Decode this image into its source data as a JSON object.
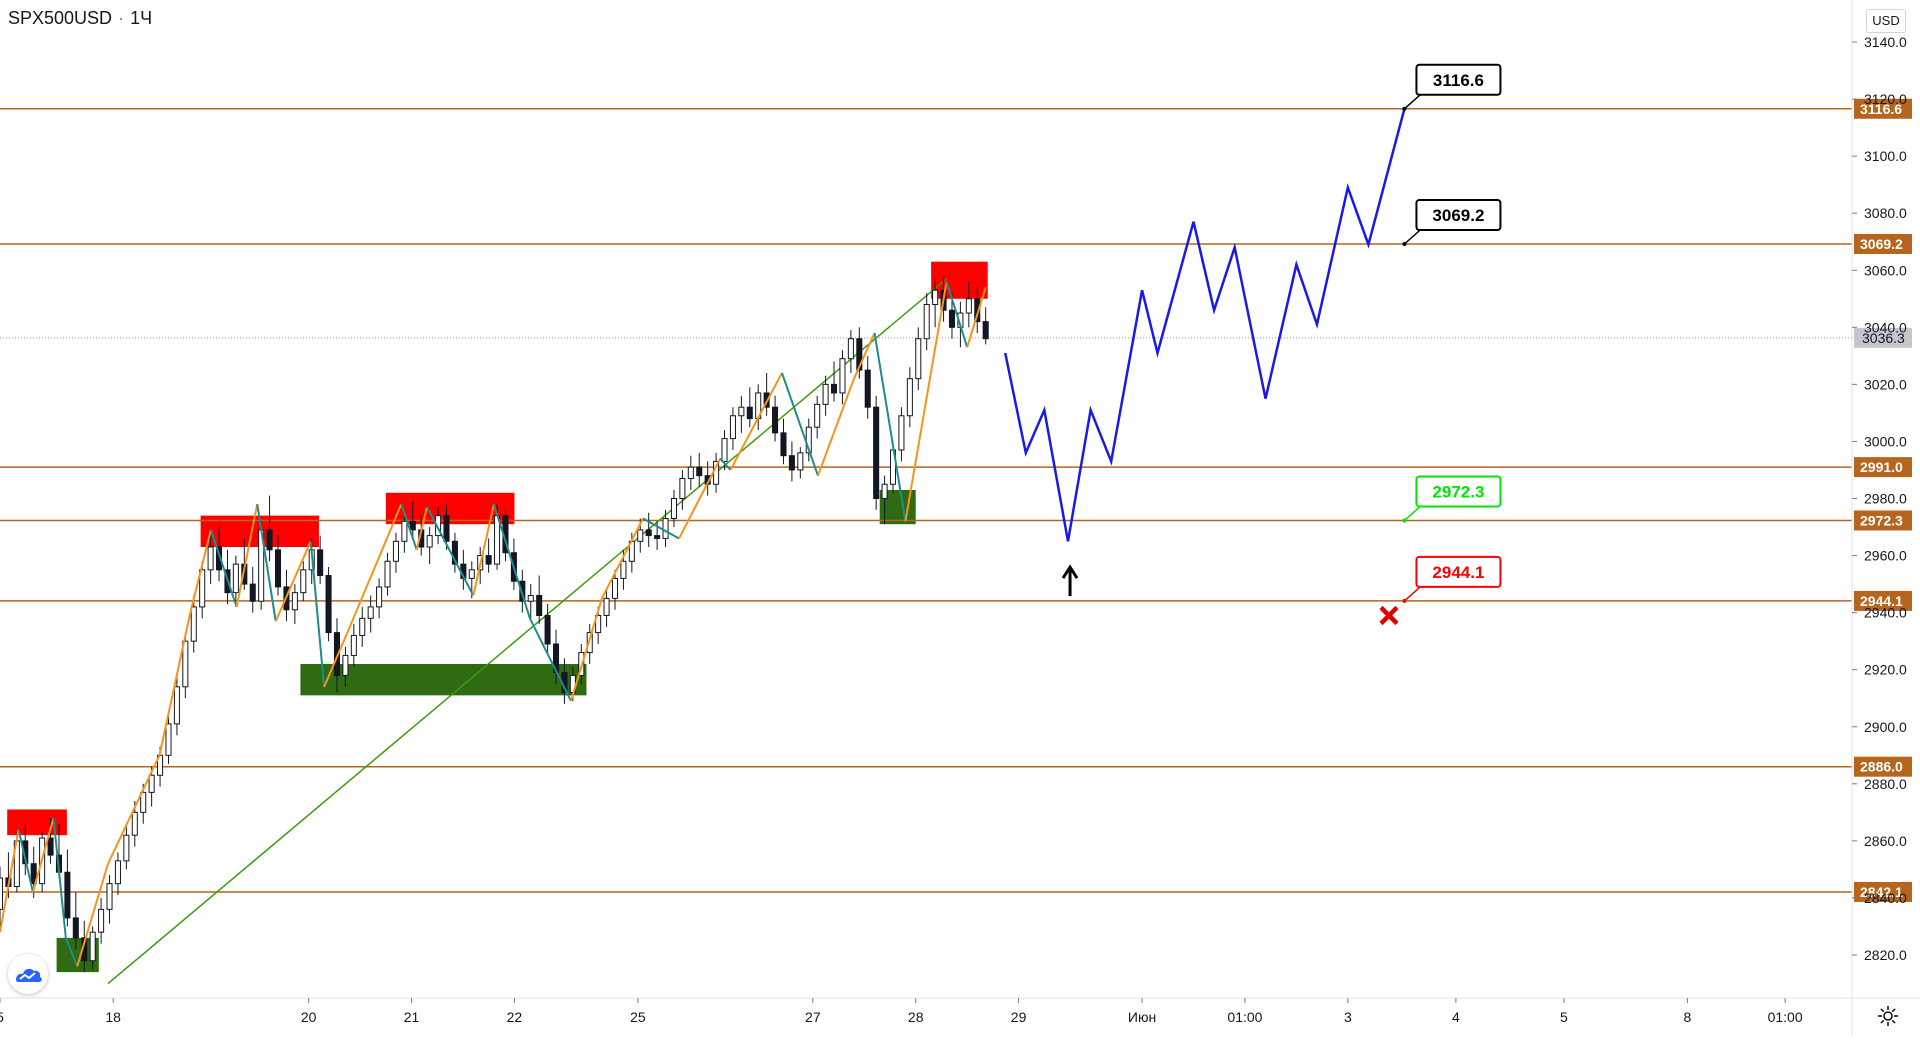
{
  "header": {
    "symbol": "SPX500USD",
    "interval": "1Ч"
  },
  "axis": {
    "currency": "USD"
  },
  "icons": {
    "logo": "tradingview-cloud-icon",
    "settings": "gear-icon"
  },
  "colors": {
    "level_line": "#b5651d",
    "level_tag_bg": "#b5651d",
    "resistance_zone": "#ff0000",
    "support_zone": "#2e6b12",
    "trendline": "#3f9b0b",
    "zigzag_up": "#f7931a",
    "zigzag_down": "#1f8c8c",
    "forecast_path": "#1a1ae6",
    "candle": "#131722",
    "label_green": "#00e600",
    "label_red": "#ff0000",
    "label_black": "#000000"
  },
  "chart_data": {
    "type": "candlestick",
    "instrument": "SPX500USD",
    "timeframe": "1Ч",
    "y_axis": {
      "min": 2810,
      "max": 3150,
      "ticks": [
        2820.0,
        2840.0,
        2860.0,
        2880.0,
        2900.0,
        2920.0,
        2940.0,
        2960.0,
        2980.0,
        3000.0,
        3020.0,
        3040.0,
        3060.0,
        3080.0,
        3100.0,
        3120.0,
        3140.0
      ]
    },
    "x_axis": {
      "ticks": [
        {
          "label": "5",
          "t": 0.0
        },
        {
          "label": "18",
          "t": 1.1
        },
        {
          "label": "20",
          "t": 3.0
        },
        {
          "label": "21",
          "t": 4.0
        },
        {
          "label": "22",
          "t": 5.0
        },
        {
          "label": "25",
          "t": 6.2
        },
        {
          "label": "27",
          "t": 7.9
        },
        {
          "label": "28",
          "t": 8.9
        },
        {
          "label": "29",
          "t": 9.9
        },
        {
          "label": "Июн",
          "t": 11.1
        },
        {
          "label": "01:00",
          "t": 12.1
        },
        {
          "label": "3",
          "t": 13.1
        },
        {
          "label": "4",
          "t": 14.15
        },
        {
          "label": "5",
          "t": 15.2
        },
        {
          "label": "8",
          "t": 16.4
        },
        {
          "label": "01:00",
          "t": 17.35
        }
      ]
    },
    "current_price": 3036.3,
    "levels": [
      3116.6,
      3069.2,
      2991.0,
      2972.3,
      2944.1,
      2886.0,
      2842.1
    ],
    "resistance_zones": [
      {
        "t0": 0.07,
        "t1": 0.65,
        "p0": 2862,
        "p1": 2871
      },
      {
        "t0": 1.95,
        "t1": 3.1,
        "p0": 2963,
        "p1": 2974
      },
      {
        "t0": 3.75,
        "t1": 5.0,
        "p0": 2971,
        "p1": 2982
      },
      {
        "t0": 9.05,
        "t1": 9.6,
        "p0": 3050,
        "p1": 3063
      }
    ],
    "support_zones": [
      {
        "t0": 0.55,
        "t1": 0.96,
        "p0": 2814,
        "p1": 2826
      },
      {
        "t0": 2.92,
        "t1": 5.7,
        "p0": 2911,
        "p1": 2922
      },
      {
        "t0": 8.55,
        "t1": 8.9,
        "p0": 2971,
        "p1": 2983
      }
    ],
    "trendline": [
      {
        "t": 1.05,
        "p": 2810
      },
      {
        "t": 9.2,
        "p": 3057
      }
    ],
    "zigzag": [
      {
        "t": 0.0,
        "p": 2828
      },
      {
        "t": 0.18,
        "p": 2864
      },
      {
        "t": 0.32,
        "p": 2842
      },
      {
        "t": 0.52,
        "p": 2868
      },
      {
        "t": 0.64,
        "p": 2826
      },
      {
        "t": 0.75,
        "p": 2816
      },
      {
        "t": 1.05,
        "p": 2852
      },
      {
        "t": 1.55,
        "p": 2890
      },
      {
        "t": 1.85,
        "p": 2940
      },
      {
        "t": 2.05,
        "p": 2969
      },
      {
        "t": 2.3,
        "p": 2942
      },
      {
        "t": 2.5,
        "p": 2978
      },
      {
        "t": 2.68,
        "p": 2937
      },
      {
        "t": 3.02,
        "p": 2965
      },
      {
        "t": 3.15,
        "p": 2914
      },
      {
        "t": 3.4,
        "p": 2935
      },
      {
        "t": 3.9,
        "p": 2978
      },
      {
        "t": 4.05,
        "p": 2962
      },
      {
        "t": 4.15,
        "p": 2977
      },
      {
        "t": 4.6,
        "p": 2946
      },
      {
        "t": 4.8,
        "p": 2978
      },
      {
        "t": 5.15,
        "p": 2938
      },
      {
        "t": 5.55,
        "p": 2909
      },
      {
        "t": 5.85,
        "p": 2945
      },
      {
        "t": 6.25,
        "p": 2973
      },
      {
        "t": 6.6,
        "p": 2966
      },
      {
        "t": 7.0,
        "p": 2994
      },
      {
        "t": 7.1,
        "p": 2990
      },
      {
        "t": 7.6,
        "p": 3024
      },
      {
        "t": 7.95,
        "p": 2988
      },
      {
        "t": 8.3,
        "p": 3022
      },
      {
        "t": 8.5,
        "p": 3038
      },
      {
        "t": 8.8,
        "p": 2972
      },
      {
        "t": 9.2,
        "p": 3056
      },
      {
        "t": 9.4,
        "p": 3033
      },
      {
        "t": 9.58,
        "p": 3054
      }
    ],
    "forecast_path": [
      {
        "t": 9.77,
        "p": 3031
      },
      {
        "t": 9.97,
        "p": 2996
      },
      {
        "t": 10.15,
        "p": 3011
      },
      {
        "t": 10.38,
        "p": 2965
      },
      {
        "t": 10.6,
        "p": 3011
      },
      {
        "t": 10.8,
        "p": 2993
      },
      {
        "t": 11.1,
        "p": 3053
      },
      {
        "t": 11.25,
        "p": 3031
      },
      {
        "t": 11.6,
        "p": 3077
      },
      {
        "t": 11.8,
        "p": 3046
      },
      {
        "t": 12.0,
        "p": 3068
      },
      {
        "t": 12.3,
        "p": 3015
      },
      {
        "t": 12.6,
        "p": 3062
      },
      {
        "t": 12.8,
        "p": 3041
      },
      {
        "t": 13.1,
        "p": 3089
      },
      {
        "t": 13.3,
        "p": 3069
      },
      {
        "t": 13.65,
        "p": 3116.6
      }
    ],
    "annotations": [
      {
        "text": "3116.6",
        "t": 13.65,
        "p": 3116.6,
        "color": "#000000"
      },
      {
        "text": "3069.2",
        "t": 13.65,
        "p": 3069.2,
        "color": "#000000"
      },
      {
        "text": "2972.3",
        "t": 13.65,
        "p": 2972.3,
        "color": "#00e600"
      },
      {
        "text": "2944.1",
        "t": 13.65,
        "p": 2944.1,
        "color": "#ff0000"
      }
    ],
    "markers": [
      {
        "type": "arrow-up",
        "t": 10.4,
        "p": 2957
      },
      {
        "type": "cross",
        "t": 13.5,
        "p": 2939
      }
    ],
    "candles_ohlc": [
      [
        2836,
        2851,
        2828,
        2847
      ],
      [
        2847,
        2856,
        2840,
        2844
      ],
      [
        2844,
        2863,
        2842,
        2860
      ],
      [
        2860,
        2866,
        2848,
        2852
      ],
      [
        2852,
        2858,
        2840,
        2845
      ],
      [
        2845,
        2863,
        2842,
        2861
      ],
      [
        2861,
        2868,
        2852,
        2855
      ],
      [
        2855,
        2866,
        2847,
        2849
      ],
      [
        2849,
        2857,
        2830,
        2833
      ],
      [
        2833,
        2842,
        2822,
        2826
      ],
      [
        2826,
        2832,
        2814,
        2818
      ],
      [
        2818,
        2830,
        2815,
        2828
      ],
      [
        2828,
        2840,
        2824,
        2836
      ],
      [
        2836,
        2848,
        2831,
        2845
      ],
      [
        2845,
        2856,
        2841,
        2853
      ],
      [
        2853,
        2866,
        2850,
        2862
      ],
      [
        2862,
        2874,
        2858,
        2870
      ],
      [
        2870,
        2880,
        2866,
        2877
      ],
      [
        2877,
        2886,
        2872,
        2883
      ],
      [
        2883,
        2893,
        2879,
        2890
      ],
      [
        2890,
        2904,
        2887,
        2901
      ],
      [
        2901,
        2918,
        2897,
        2914
      ],
      [
        2914,
        2933,
        2910,
        2930
      ],
      [
        2930,
        2946,
        2926,
        2942
      ],
      [
        2942,
        2958,
        2938,
        2955
      ],
      [
        2955,
        2968,
        2950,
        2963
      ],
      [
        2963,
        2970,
        2951,
        2955
      ],
      [
        2955,
        2962,
        2943,
        2947
      ],
      [
        2947,
        2960,
        2944,
        2957
      ],
      [
        2957,
        2966,
        2948,
        2950
      ],
      [
        2950,
        2956,
        2940,
        2944
      ],
      [
        2944,
        2972,
        2941,
        2969
      ],
      [
        2969,
        2981,
        2958,
        2962
      ],
      [
        2962,
        2967,
        2946,
        2949
      ],
      [
        2949,
        2955,
        2937,
        2941
      ],
      [
        2941,
        2950,
        2936,
        2947
      ],
      [
        2947,
        2958,
        2944,
        2955
      ],
      [
        2955,
        2966,
        2950,
        2962
      ],
      [
        2962,
        2967,
        2950,
        2953
      ],
      [
        2953,
        2956,
        2930,
        2933
      ],
      [
        2933,
        2938,
        2912,
        2918
      ],
      [
        2918,
        2928,
        2914,
        2925
      ],
      [
        2925,
        2936,
        2921,
        2932
      ],
      [
        2932,
        2942,
        2928,
        2938
      ],
      [
        2938,
        2946,
        2933,
        2942
      ],
      [
        2942,
        2952,
        2938,
        2949
      ],
      [
        2949,
        2961,
        2946,
        2958
      ],
      [
        2958,
        2968,
        2954,
        2965
      ],
      [
        2965,
        2975,
        2961,
        2972
      ],
      [
        2972,
        2979,
        2966,
        2969
      ],
      [
        2969,
        2974,
        2960,
        2963
      ],
      [
        2963,
        2970,
        2957,
        2967
      ],
      [
        2967,
        2977,
        2964,
        2974
      ],
      [
        2974,
        2978,
        2962,
        2965
      ],
      [
        2965,
        2968,
        2954,
        2957
      ],
      [
        2957,
        2962,
        2948,
        2952
      ],
      [
        2952,
        2958,
        2945,
        2955
      ],
      [
        2955,
        2963,
        2950,
        2960
      ],
      [
        2960,
        2966,
        2954,
        2957
      ],
      [
        2957,
        2978,
        2955,
        2974
      ],
      [
        2974,
        2977,
        2958,
        2961
      ],
      [
        2961,
        2966,
        2948,
        2951
      ],
      [
        2951,
        2955,
        2940,
        2944
      ],
      [
        2944,
        2950,
        2937,
        2946
      ],
      [
        2946,
        2953,
        2936,
        2939
      ],
      [
        2939,
        2943,
        2926,
        2929
      ],
      [
        2929,
        2934,
        2915,
        2919
      ],
      [
        2919,
        2924,
        2908,
        2912
      ],
      [
        2912,
        2921,
        2909,
        2918
      ],
      [
        2918,
        2929,
        2915,
        2926
      ],
      [
        2926,
        2936,
        2922,
        2933
      ],
      [
        2933,
        2942,
        2929,
        2939
      ],
      [
        2939,
        2948,
        2935,
        2945
      ],
      [
        2945,
        2955,
        2941,
        2952
      ],
      [
        2952,
        2962,
        2948,
        2958
      ],
      [
        2958,
        2968,
        2954,
        2965
      ],
      [
        2965,
        2973,
        2961,
        2969
      ],
      [
        2969,
        2975,
        2963,
        2967
      ],
      [
        2967,
        2972,
        2962,
        2966
      ],
      [
        2966,
        2976,
        2963,
        2973
      ],
      [
        2973,
        2983,
        2970,
        2980
      ],
      [
        2980,
        2990,
        2976,
        2987
      ],
      [
        2987,
        2995,
        2983,
        2991
      ],
      [
        2991,
        2996,
        2984,
        2988
      ],
      [
        2988,
        2993,
        2981,
        2985
      ],
      [
        2985,
        2996,
        2982,
        2993
      ],
      [
        2993,
        3004,
        2990,
        3001
      ],
      [
        3001,
        3012,
        2997,
        3009
      ],
      [
        3009,
        3016,
        3003,
        3012
      ],
      [
        3012,
        3019,
        3005,
        3008
      ],
      [
        3008,
        3020,
        3004,
        3017
      ],
      [
        3017,
        3024,
        3009,
        3012
      ],
      [
        3012,
        3016,
        3000,
        3003
      ],
      [
        3003,
        3008,
        2992,
        2995
      ],
      [
        2995,
        3000,
        2986,
        2990
      ],
      [
        2990,
        2998,
        2987,
        2996
      ],
      [
        2996,
        3008,
        2993,
        3005
      ],
      [
        3005,
        3016,
        3001,
        3013
      ],
      [
        3013,
        3023,
        3009,
        3020
      ],
      [
        3020,
        3028,
        3014,
        3017
      ],
      [
        3017,
        3032,
        3013,
        3029
      ],
      [
        3029,
        3039,
        3024,
        3036
      ],
      [
        3036,
        3040,
        3022,
        3025
      ],
      [
        3025,
        3030,
        3008,
        3012
      ],
      [
        3012,
        3016,
        2976,
        2980
      ],
      [
        2980,
        2988,
        2971,
        2985
      ],
      [
        2985,
        3000,
        2982,
        2997
      ],
      [
        2997,
        3012,
        2993,
        3009
      ],
      [
        3009,
        3026,
        3005,
        3022
      ],
      [
        3022,
        3040,
        3018,
        3036
      ],
      [
        3036,
        3052,
        3032,
        3048
      ],
      [
        3048,
        3057,
        3040,
        3053
      ],
      [
        3053,
        3058,
        3042,
        3046
      ],
      [
        3046,
        3052,
        3036,
        3040
      ],
      [
        3040,
        3049,
        3033,
        3045
      ],
      [
        3045,
        3056,
        3040,
        3050
      ],
      [
        3050,
        3054,
        3038,
        3042
      ],
      [
        3042,
        3047,
        3034,
        3036
      ]
    ]
  }
}
